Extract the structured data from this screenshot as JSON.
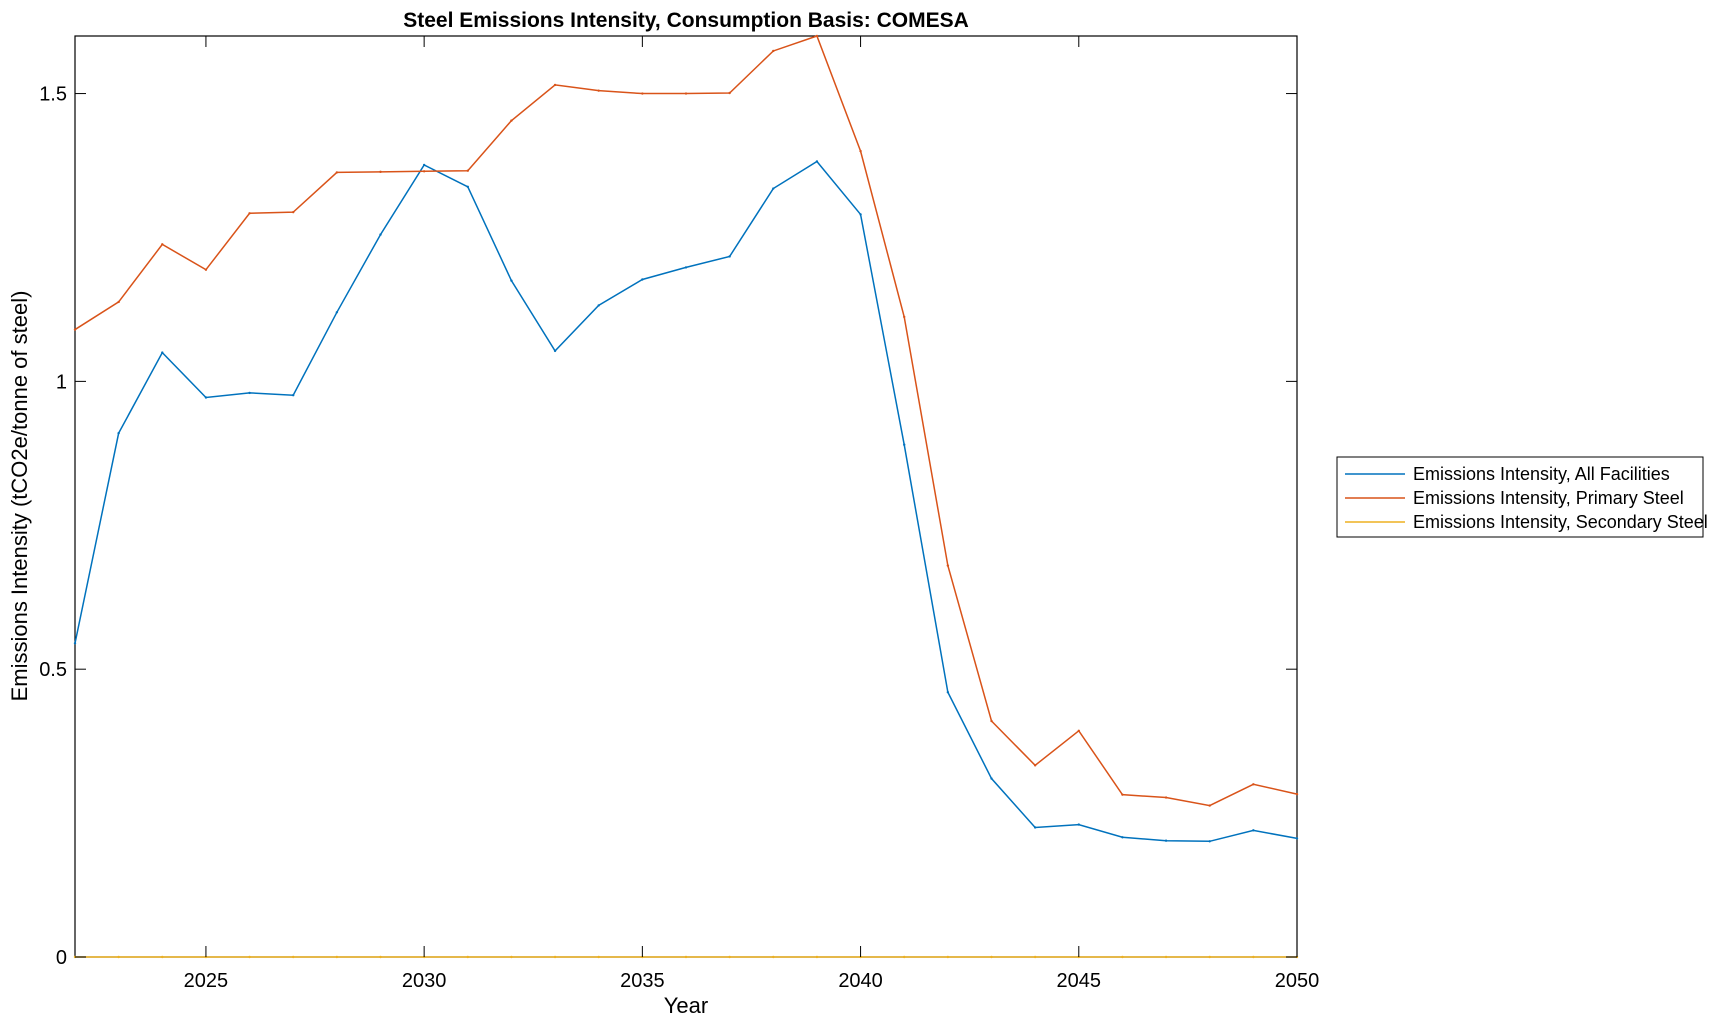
{
  "chart_data": {
    "type": "line",
    "title": "Steel Emissions Intensity, Consumption Basis: COMESA",
    "xlabel": "Year",
    "ylabel": "Emissions Intensity (tCO2e/tonne of steel)",
    "xlim": [
      2022,
      2050
    ],
    "ylim": [
      0,
      1.6
    ],
    "xticks": [
      2025,
      2030,
      2035,
      2040,
      2045,
      2050
    ],
    "yticks": [
      0,
      0.5,
      1,
      1.5
    ],
    "ytick_labels": [
      "0",
      "0.5",
      "1",
      "1.5"
    ],
    "grid": false,
    "legend_position": "outside-right",
    "x": [
      2022,
      2023,
      2024,
      2025,
      2026,
      2027,
      2028,
      2029,
      2030,
      2031,
      2032,
      2033,
      2034,
      2035,
      2036,
      2037,
      2038,
      2039,
      2040,
      2041,
      2042,
      2043,
      2044,
      2045,
      2046,
      2047,
      2048,
      2049,
      2050
    ],
    "series": [
      {
        "name": "Emissions Intensity, All Facilities",
        "color": "#0072BD",
        "values": [
          0.545,
          0.91,
          1.05,
          0.972,
          0.98,
          0.976,
          1.12,
          1.255,
          1.376,
          1.338,
          1.175,
          1.053,
          1.132,
          1.177,
          1.198,
          1.217,
          1.335,
          1.382,
          1.29,
          0.89,
          0.46,
          0.31,
          0.225,
          0.23,
          0.208,
          0.202,
          0.201,
          0.22,
          0.206
        ]
      },
      {
        "name": "Emissions Intensity, Primary Steel",
        "color": "#D95319",
        "values": [
          1.09,
          1.138,
          1.238,
          1.194,
          1.292,
          1.294,
          1.363,
          1.364,
          1.365,
          1.366,
          1.453,
          1.515,
          1.505,
          1.5,
          1.5,
          1.501,
          1.574,
          1.6,
          1.4,
          1.112,
          0.68,
          0.41,
          0.333,
          0.393,
          0.282,
          0.277,
          0.263,
          0.3,
          0.283
        ]
      },
      {
        "name": "Emissions Intensity, Secondary Steel",
        "color": "#EDB120",
        "values": [
          0,
          0,
          0,
          0,
          0,
          0,
          0,
          0,
          0,
          0,
          0,
          0,
          0,
          0,
          0,
          0,
          0,
          0,
          0,
          0,
          0,
          0,
          0,
          0,
          0,
          0,
          0,
          0,
          0
        ]
      }
    ]
  }
}
